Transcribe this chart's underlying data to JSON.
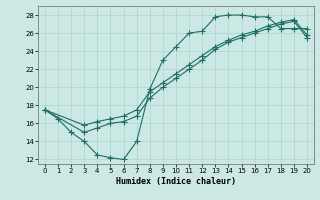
{
  "xlabel": "Humidex (Indice chaleur)",
  "background_color": "#cce8e4",
  "grid_color": "#aad4ce",
  "line_color": "#1e6e64",
  "xlim": [
    -0.5,
    20.5
  ],
  "ylim": [
    11.5,
    29.0
  ],
  "yticks": [
    12,
    14,
    16,
    18,
    20,
    22,
    24,
    26,
    28
  ],
  "xticks": [
    0,
    1,
    2,
    3,
    4,
    5,
    6,
    7,
    8,
    9,
    10,
    11,
    12,
    13,
    14,
    15,
    16,
    17,
    18,
    19,
    20
  ],
  "line1_x": [
    0,
    1,
    2,
    3,
    4,
    5,
    6,
    7,
    8,
    9,
    10,
    11,
    12,
    13,
    14,
    15,
    16,
    17,
    18,
    19,
    20
  ],
  "line1_y": [
    17.5,
    16.5,
    15.0,
    14.0,
    12.5,
    12.2,
    12.0,
    14.0,
    19.8,
    23.0,
    24.5,
    26.0,
    26.2,
    27.8,
    28.0,
    28.0,
    27.8,
    27.8,
    26.5,
    26.5,
    26.5
  ],
  "line2_x": [
    0,
    3,
    4,
    5,
    6,
    7,
    8,
    9,
    10,
    11,
    12,
    13,
    14,
    15,
    16,
    17,
    18,
    19,
    20
  ],
  "line2_y": [
    17.5,
    15.8,
    16.2,
    16.5,
    16.8,
    17.5,
    19.5,
    20.5,
    21.5,
    22.5,
    23.5,
    24.5,
    25.2,
    25.8,
    26.2,
    26.8,
    27.2,
    27.5,
    25.8
  ],
  "line3_x": [
    0,
    3,
    4,
    5,
    6,
    7,
    8,
    9,
    10,
    11,
    12,
    13,
    14,
    15,
    16,
    17,
    18,
    19,
    20
  ],
  "line3_y": [
    17.5,
    15.0,
    15.5,
    16.0,
    16.2,
    16.8,
    18.8,
    20.0,
    21.0,
    22.0,
    23.0,
    24.2,
    25.0,
    25.5,
    26.0,
    26.5,
    27.0,
    27.3,
    25.5
  ]
}
